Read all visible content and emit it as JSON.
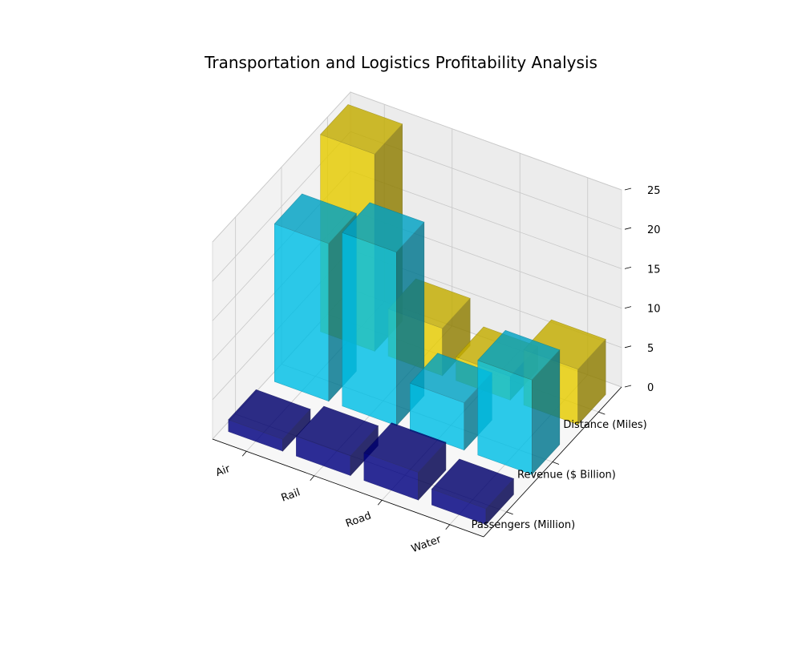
{
  "chart_data": {
    "type": "bar3d",
    "title": "Transportation and Logistics Profitability Analysis",
    "categories": [
      "Air",
      "Rail",
      "Road",
      "Water"
    ],
    "series": [
      {
        "name": "Passengers (Million)",
        "values": [
          1.5,
          2.5,
          3.5,
          2.0
        ],
        "color": "#000080"
      },
      {
        "name": "Revenue ($ Billion)",
        "values": [
          20,
          22,
          6,
          12
        ],
        "color": "#00bfe6"
      },
      {
        "name": "Distance (Miles)",
        "values": [
          25,
          6,
          3,
          7
        ],
        "color": "#e6cc00"
      }
    ],
    "zlim": [
      0,
      25
    ],
    "zticks": [
      0,
      5,
      10,
      15,
      20,
      25
    ],
    "grid": true
  }
}
